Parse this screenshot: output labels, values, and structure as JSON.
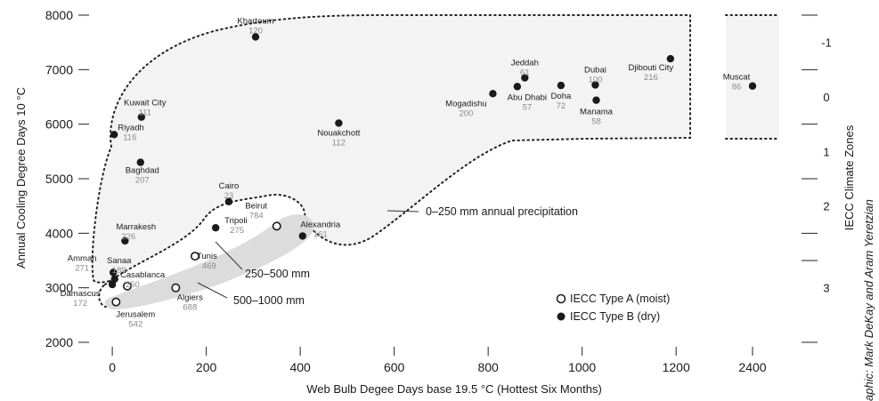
{
  "chart_data": {
    "type": "scatter",
    "xlabel": "Web Bulb Degee Days base 19.5 °C (Hottest Six Months)",
    "ylabel": "Annual Cooling Degree Days 10 °C",
    "credit": "aphic: Mark DeKay and Aram Yeretzian",
    "x_ticks": [
      0,
      200,
      400,
      600,
      800,
      1000,
      1200,
      2400
    ],
    "y_ticks": [
      2000,
      3000,
      4000,
      5000,
      6000,
      7000,
      8000
    ],
    "xlim_main": [
      -40,
      1230
    ],
    "xlim_break": [
      2320,
      2480
    ],
    "ylim": [
      1900,
      8100
    ],
    "zone_axis_title": "IECC Climate Zones",
    "zones": [
      {
        "label": "-1",
        "y": 7500
      },
      {
        "label": "0",
        "y": 6500
      },
      {
        "label": "1",
        "y": 5500
      },
      {
        "label": "2",
        "y": 4500
      },
      {
        "label": "3",
        "y": 3000
      }
    ],
    "zone_boundaries": [
      8000,
      7000,
      6000,
      5000,
      4000,
      3500,
      2000
    ],
    "annotations": {
      "precip_0_250": "0–250 mm annual precipitation",
      "precip_250_500": "250–500 mm",
      "precip_500_1000": "500–1000 mm"
    },
    "legend": {
      "type_a": "IECC Type A (moist)",
      "type_b": "IECC Type B (dry)"
    },
    "points": [
      {
        "city": "Khartoum",
        "value": "120",
        "x": 305,
        "y": 7600,
        "type": "B"
      },
      {
        "city": "Kuwait City",
        "value": "111",
        "x": 62,
        "y": 6130,
        "type": "B"
      },
      {
        "city": "Riyadh",
        "value": "116",
        "x": 4,
        "y": 5810,
        "type": "B"
      },
      {
        "city": "Baghdad",
        "value": "207",
        "x": 60,
        "y": 5300,
        "type": "B"
      },
      {
        "city": "Nouakchott",
        "value": "112",
        "x": 482,
        "y": 6020,
        "type": "B"
      },
      {
        "city": "Mogadishu",
        "value": "200",
        "x": 810,
        "y": 6560,
        "type": "B"
      },
      {
        "city": "Jeddah",
        "value": "61",
        "x": 878,
        "y": 6850,
        "type": "B"
      },
      {
        "city": "Abu Dhabi",
        "value": "57",
        "x": 862,
        "y": 6690,
        "type": "B"
      },
      {
        "city": "Doha",
        "value": "72",
        "x": 955,
        "y": 6710,
        "type": "B"
      },
      {
        "city": "Dubai",
        "value": "100",
        "x": 1028,
        "y": 6720,
        "type": "B"
      },
      {
        "city": "Manama",
        "value": "58",
        "x": 1030,
        "y": 6440,
        "type": "B"
      },
      {
        "city": "Djibouti City",
        "value": "216",
        "x": 1188,
        "y": 7200,
        "type": "B"
      },
      {
        "city": "Muscat",
        "value": "86",
        "x": 2400,
        "y": 6700,
        "type": "B"
      },
      {
        "city": "Cairo",
        "value": "23",
        "x": 248,
        "y": 4580,
        "type": "B"
      },
      {
        "city": "Beirut",
        "value": "784",
        "x": 350,
        "y": 4130,
        "type": "A"
      },
      {
        "city": "Alexandria",
        "value": "161",
        "x": 405,
        "y": 3950,
        "type": "B"
      },
      {
        "city": "Tripoli",
        "value": "275",
        "x": 220,
        "y": 4100,
        "type": "B"
      },
      {
        "city": "Marrakesh",
        "value": "226",
        "x": 27,
        "y": 3860,
        "type": "B"
      },
      {
        "city": "Tunis",
        "value": "469",
        "x": 176,
        "y": 3580,
        "type": "A"
      },
      {
        "city": "Amman",
        "value": "271",
        "x": 2,
        "y": 3280,
        "type": "B"
      },
      {
        "city": "Sanaa",
        "value": "189",
        "x": 5,
        "y": 3160,
        "type": "B"
      },
      {
        "city": "Casablanca",
        "value": "250",
        "x": 32,
        "y": 3030,
        "type": "A"
      },
      {
        "city": "Damascus",
        "value": "172",
        "x": 0,
        "y": 3060,
        "type": "B"
      },
      {
        "city": "Algiers",
        "value": "688",
        "x": 135,
        "y": 3000,
        "type": "A"
      },
      {
        "city": "Jerusalem",
        "value": "542",
        "x": 8,
        "y": 2740,
        "type": "A"
      }
    ]
  }
}
